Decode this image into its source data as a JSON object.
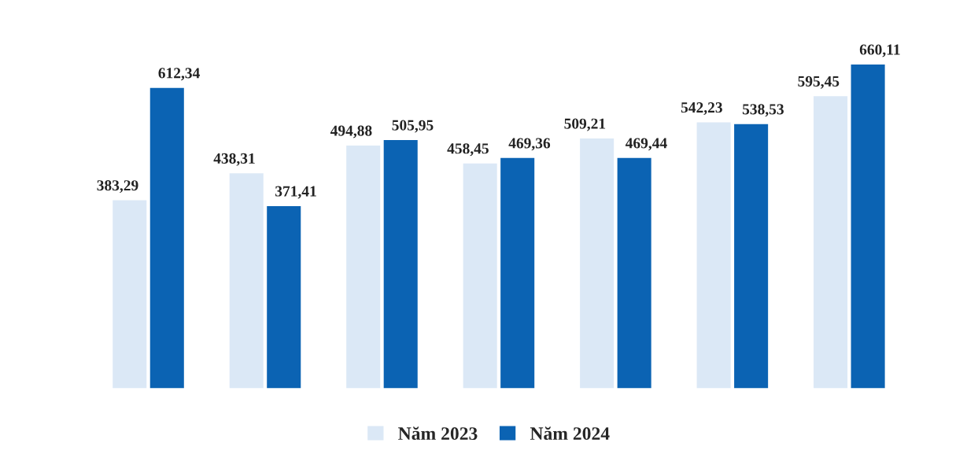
{
  "chart_data": {
    "type": "bar",
    "categories": [
      null,
      null,
      null,
      null,
      null,
      null,
      null
    ],
    "series": [
      {
        "name": "Năm 2023",
        "color": "#dbe8f6",
        "values": [
          383.29,
          438.31,
          494.88,
          458.45,
          509.21,
          542.23,
          595.45
        ],
        "value_labels": [
          "383,29",
          "438,31",
          "494,88",
          "458,45",
          "509,21",
          "542,23",
          "595,45"
        ]
      },
      {
        "name": "Năm 2024",
        "color": "#0b63b3",
        "values": [
          612.34,
          371.41,
          505.95,
          469.36,
          469.44,
          538.53,
          660.11
        ],
        "value_labels": [
          "612,34",
          "371,41",
          "505,95",
          "469,36",
          "469,44",
          "538,53",
          "660,11"
        ]
      }
    ],
    "legend": "bottom",
    "grid": false
  }
}
